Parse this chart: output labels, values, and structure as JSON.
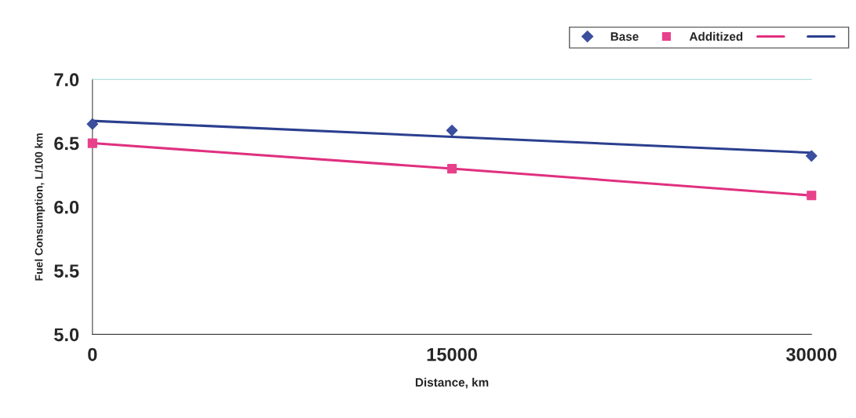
{
  "chart_data": {
    "type": "scatter",
    "xlabel": "Distance, km",
    "ylabel": "Fuel Consumption, L/100 km",
    "x": [
      0,
      15000,
      30000
    ],
    "series": [
      {
        "name": "Base",
        "color": "#3b4f9e",
        "values": [
          6.65,
          6.6,
          6.4
        ],
        "marker": "diamond"
      },
      {
        "name": "Additized",
        "color": "#e8418c",
        "values": [
          6.5,
          6.3,
          6.09
        ],
        "marker": "square"
      },
      {
        "type": "line",
        "color": "#e0307f",
        "values": [
          6.5,
          6.3,
          6.09
        ]
      },
      {
        "type": "line",
        "color": "#2b3f8f",
        "values": [
          6.675,
          6.55,
          6.425
        ]
      }
    ],
    "xlim": [
      0,
      30000
    ],
    "xticks": [
      0,
      15000,
      30000
    ],
    "ylim": [
      5.0,
      7.0
    ],
    "yticks": [
      {
        "value": 5.0,
        "label": "5.0"
      },
      {
        "value": 5.5,
        "label": "5.5"
      },
      {
        "value": 6.0,
        "label": "6.0"
      },
      {
        "value": 6.5,
        "label": "6.5"
      },
      {
        "value": 7.0,
        "label": "7.0"
      }
    ],
    "grid": false,
    "legend": "top right"
  }
}
